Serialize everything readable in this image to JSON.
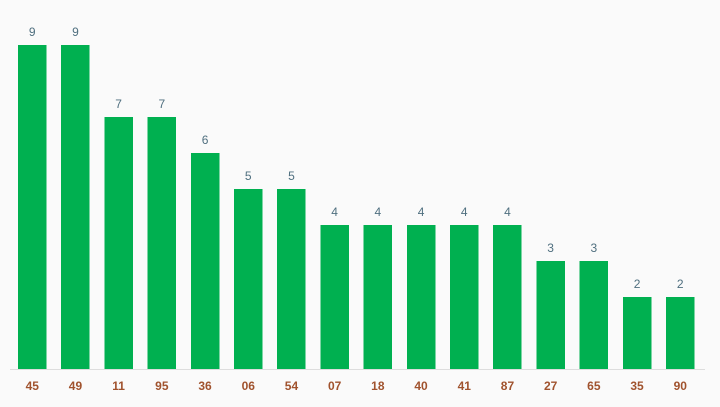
{
  "chart_data": {
    "type": "bar",
    "categories": [
      "45",
      "49",
      "11",
      "95",
      "36",
      "06",
      "54",
      "07",
      "18",
      "40",
      "41",
      "87",
      "27",
      "65",
      "35",
      "90"
    ],
    "values": [
      9,
      9,
      7,
      7,
      6,
      5,
      5,
      4,
      4,
      4,
      4,
      4,
      3,
      3,
      2,
      2
    ],
    "title": "",
    "xlabel": "",
    "ylabel": "",
    "ylim": [
      0,
      9
    ],
    "grid": false,
    "data_labels": true,
    "colors": {
      "bar": "#00b050",
      "value_label": "#4f6f7f",
      "category_label": "#a0522d",
      "baseline": "#dddddd",
      "background": "#fafafa"
    }
  }
}
